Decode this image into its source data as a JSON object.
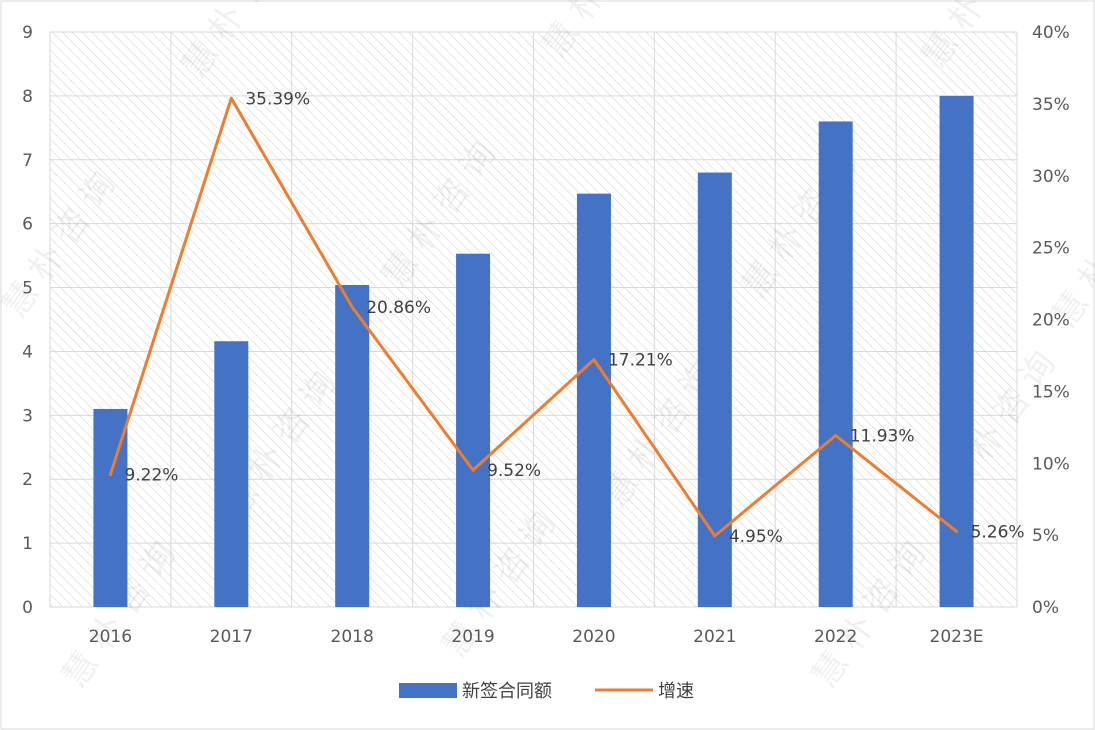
{
  "chart_data": {
    "type": "bar",
    "categories": [
      "2016",
      "2017",
      "2018",
      "2019",
      "2020",
      "2021",
      "2022",
      "2023E"
    ],
    "series": [
      {
        "name": "新签合同额",
        "type": "bar",
        "axis": "left",
        "values": [
          3.1,
          4.16,
          5.04,
          5.53,
          6.47,
          6.8,
          7.6,
          8.0
        ]
      },
      {
        "name": "增速",
        "type": "line",
        "axis": "right",
        "values": [
          9.22,
          35.39,
          20.86,
          9.52,
          17.21,
          4.95,
          11.93,
          5.26
        ],
        "labels": [
          "9.22%",
          "35.39%",
          "20.86%",
          "9.52%",
          "17.21%",
          "4.95%",
          "11.93%",
          "5.26%"
        ]
      }
    ],
    "y_left": {
      "ylim": [
        0,
        9
      ],
      "ticks": [
        "0",
        "1",
        "2",
        "3",
        "4",
        "5",
        "6",
        "7",
        "8",
        "9"
      ]
    },
    "y_right": {
      "ylim": [
        0,
        40
      ],
      "ticks": [
        "0%",
        "5%",
        "10%",
        "15%",
        "20%",
        "25%",
        "30%",
        "35%",
        "40%"
      ]
    },
    "grid": true,
    "legend": "bottom",
    "colors": {
      "bar": "#4472C4",
      "line": "#ED7D31",
      "grid": "#D9D9D9",
      "hatch": "#C8C8C8"
    },
    "watermark": "慧 朴 咨 询"
  }
}
